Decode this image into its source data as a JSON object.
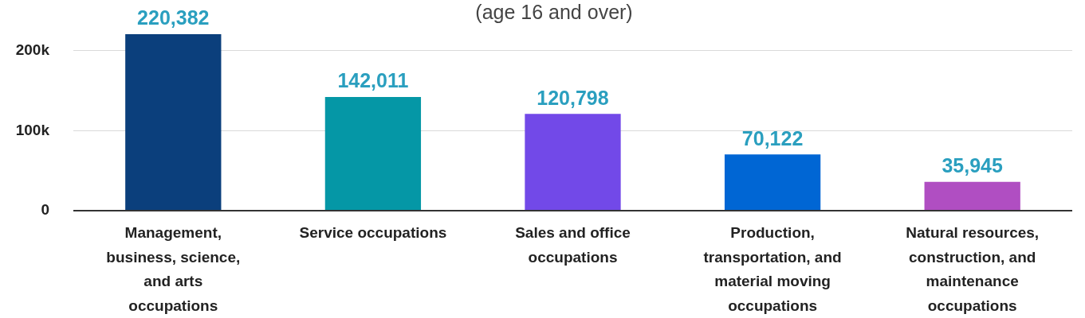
{
  "chart_data": {
    "type": "bar",
    "title": "(age 16 and over)",
    "categories": [
      "Management, business, science, and arts occupations",
      "Service occupations",
      "Sales and office occupations",
      "Production, transportation, and material moving occupations",
      "Natural resources, construction, and maintenance occupations"
    ],
    "values": [
      220382,
      142011,
      120798,
      70122,
      35945
    ],
    "colors": [
      "#0b3f7c",
      "#0597a6",
      "#7249e8",
      "#0066d4",
      "#b04ec2"
    ],
    "ylim": [
      0,
      222000
    ],
    "yticks": [
      {
        "value": 0,
        "label": "0"
      },
      {
        "value": 100000,
        "label": "100k"
      },
      {
        "value": 200000,
        "label": "200k"
      }
    ],
    "value_labels": [
      "220,382",
      "142,011",
      "120,798",
      "70,122",
      "35,945"
    ],
    "grid": "y",
    "legend": false
  }
}
